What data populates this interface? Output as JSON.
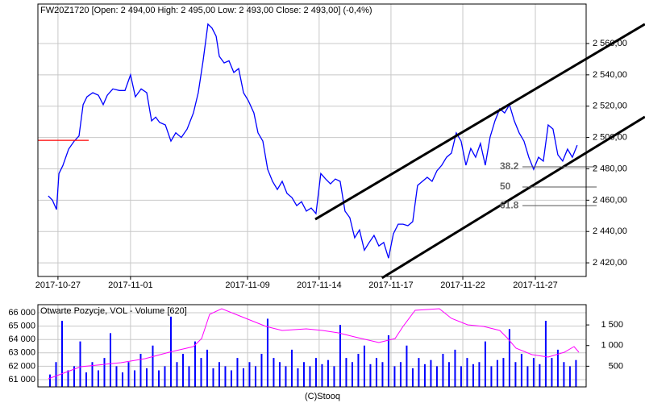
{
  "chart_data": [
    {
      "type": "line",
      "title": "FW20Z1720 [Open: 2 494,00  High: 2 495,00  Low: 2 493,00  Close: 2 493,00] (-0,4%)",
      "color": "#0000ff",
      "x": [
        0.43,
        0.6,
        0.77,
        0.87,
        1.03,
        1.27,
        1.5,
        1.7,
        1.87,
        2.03,
        2.27,
        2.5,
        2.7,
        2.87,
        3.1,
        3.37,
        3.6,
        3.83,
        4.03,
        4.27,
        4.5,
        4.7,
        4.87,
        5.03,
        5.27,
        5.5,
        5.7,
        5.93,
        6.17,
        6.43,
        6.63,
        6.83,
        7.03,
        7.2,
        7.37,
        7.5,
        7.7,
        7.9,
        8.1,
        8.3,
        8.5,
        8.7,
        8.93,
        9.1,
        9.3,
        9.5,
        9.7,
        9.9,
        10.1,
        10.3,
        10.5,
        10.7,
        10.9,
        11.1,
        11.3,
        11.5,
        11.7,
        11.9,
        12.1,
        12.3,
        12.5,
        12.7,
        12.9,
        13.1,
        13.3,
        13.5,
        13.7,
        13.9,
        14.1,
        14.3,
        14.5,
        14.7,
        14.9,
        15.1,
        15.3,
        15.5,
        15.7,
        15.9,
        16.1,
        16.3,
        16.5,
        16.7,
        16.9,
        17.1,
        17.3,
        17.5,
        17.7,
        17.9,
        18.1,
        18.3,
        18.5,
        18.7,
        18.9,
        19.1,
        19.3,
        19.5,
        19.7,
        19.9,
        20.1,
        20.3,
        20.5,
        20.7,
        20.9,
        21.1,
        21.3,
        21.5,
        21.7,
        21.9,
        22.1,
        22.3
      ],
      "values": [
        2462.7,
        2460,
        2454,
        2477,
        2482,
        2492.6,
        2497.7,
        2501,
        2521,
        2526,
        2528.6,
        2527,
        2521,
        2527,
        2531,
        2530,
        2530,
        2540,
        2526,
        2531,
        2528.6,
        2510.6,
        2513,
        2509.6,
        2508,
        2497.7,
        2503,
        2500,
        2505.4,
        2515.7,
        2528.6,
        2549,
        2572.4,
        2569.8,
        2564.6,
        2551.8,
        2547.6,
        2549,
        2541.5,
        2544,
        2528.6,
        2523.5,
        2515.7,
        2503,
        2497.7,
        2479.7,
        2472,
        2466.8,
        2472,
        2464.3,
        2461.7,
        2456.5,
        2459,
        2453,
        2455,
        2451.4,
        2477,
        2473.5,
        2470.4,
        2473.5,
        2472,
        2453,
        2448.8,
        2436,
        2441,
        2428,
        2433,
        2437.5,
        2430.8,
        2433,
        2423,
        2438.5,
        2444.7,
        2444.7,
        2443.7,
        2446.3,
        2469.4,
        2472,
        2474.6,
        2472,
        2478.7,
        2482.3,
        2487.4,
        2490,
        2503,
        2497.7,
        2482.3,
        2493,
        2487.4,
        2496.2,
        2482.3,
        2500.3,
        2510.6,
        2518.3,
        2515.7,
        2520.9,
        2510.6,
        2503,
        2497.7,
        2487.4,
        2479.7,
        2487.4,
        2484.9,
        2508,
        2505.4,
        2489,
        2485,
        2492.6,
        2487.4,
        2495.1
      ],
      "xlim": [
        0,
        22.67
      ],
      "ylim": [
        2411.3,
        2585.2
      ],
      "xticks": [
        {
          "value": 0.83,
          "label": "2017-10-27"
        },
        {
          "value": 3.83,
          "label": "2017-11-01"
        },
        {
          "value": 8.67,
          "label": "2017-11-09"
        },
        {
          "value": 11.63,
          "label": "2017-11-14"
        },
        {
          "value": 14.6,
          "label": "2017-11-17"
        },
        {
          "value": 17.57,
          "label": "2017-11-22"
        },
        {
          "value": 20.57,
          "label": "2017-11-27"
        }
      ],
      "yticks": [
        {
          "value": 2420,
          "label": "2 420,00"
        },
        {
          "value": 2440,
          "label": "2 440,00"
        },
        {
          "value": 2460,
          "label": "2 460,00"
        },
        {
          "value": 2480,
          "label": "2 480,00"
        },
        {
          "value": 2500,
          "label": "2 500,00"
        },
        {
          "value": 2520,
          "label": "2 520,00"
        },
        {
          "value": 2540,
          "label": "2 540,00"
        },
        {
          "value": 2560,
          "label": "2 560,00"
        }
      ],
      "grid": true,
      "trend_lines": [
        {
          "x": [
            11.47,
            25.1
          ],
          "y": [
            2447.8,
            2572.4
          ]
        },
        {
          "x": [
            14.23,
            25.1
          ],
          "y": [
            2410.3,
            2513.2
          ]
        }
      ],
      "fib_levels": [
        {
          "label": "38.2",
          "value": 2481.3
        },
        {
          "label": "50",
          "value": 2468.4
        },
        {
          "label": "61.8",
          "value": 2456.5
        }
      ],
      "reference_line": {
        "value": 2498.2,
        "x": [
          0,
          2.1
        ],
        "color": "#ff0000"
      }
    },
    {
      "type": "combo",
      "title": "Otwarte Pozycje, VOL - Volume [620]",
      "xlim": [
        0,
        22.67
      ],
      "ylim": [
        60458,
        66602
      ],
      "yticks": [
        {
          "value": 61000,
          "label": "61 000"
        },
        {
          "value": 62000,
          "label": "62 000"
        },
        {
          "value": 63000,
          "label": "63 000"
        },
        {
          "value": 64000,
          "label": "64 000"
        },
        {
          "value": 65000,
          "label": "65 000"
        },
        {
          "value": 66000,
          "label": "66 000"
        }
      ],
      "y2lim": [
        0,
        1990
      ],
      "y2ticks": [
        500,
        {
          "value": 1000,
          "label": "1 000"
        },
        {
          "value": 1500,
          "label": "1 500"
        }
      ],
      "grid": true,
      "series": [
        {
          "type": "bar",
          "axis": "y2",
          "color": "#0000ff",
          "x": [
            0.5,
            0.75,
            1,
            1.25,
            1.5,
            1.75,
            2,
            2.25,
            2.5,
            2.75,
            3,
            3.25,
            3.5,
            3.75,
            4,
            4.25,
            4.5,
            4.75,
            5,
            5.25,
            5.5,
            5.75,
            6,
            6.25,
            6.5,
            6.75,
            7,
            7.25,
            7.5,
            7.75,
            8,
            8.25,
            8.5,
            8.75,
            9,
            9.25,
            9.5,
            9.75,
            10,
            10.25,
            10.5,
            10.75,
            11,
            11.25,
            11.5,
            11.75,
            12,
            12.25,
            12.5,
            12.75,
            13,
            13.25,
            13.5,
            13.75,
            14,
            14.25,
            14.5,
            14.75,
            15,
            15.25,
            15.5,
            15.75,
            16,
            16.25,
            16.5,
            16.75,
            17,
            17.25,
            17.5,
            17.75,
            18,
            18.25,
            18.5,
            18.75,
            19,
            19.25,
            19.5,
            19.75,
            20,
            20.25,
            20.5,
            20.75,
            21,
            21.25,
            21.5,
            21.75,
            22,
            22.25
          ],
          "values": [
            300,
            600,
            1600,
            400,
            500,
            1100,
            350,
            600,
            400,
            700,
            1300,
            500,
            350,
            600,
            400,
            800,
            450,
            1000,
            400,
            500,
            1700,
            600,
            800,
            500,
            1100,
            700,
            900,
            450,
            600,
            500,
            400,
            700,
            450,
            600,
            500,
            800,
            1650,
            700,
            600,
            500,
            900,
            450,
            600,
            500,
            700,
            550,
            650,
            500,
            1500,
            700,
            600,
            800,
            1000,
            550,
            700,
            600,
            1250,
            500,
            600,
            1000,
            450,
            700,
            550,
            650,
            500,
            800,
            600,
            900,
            500,
            700,
            550,
            600,
            1100,
            500,
            650,
            700,
            1400,
            600,
            800,
            500,
            700,
            550,
            1600,
            700,
            900,
            600,
            500,
            650
          ]
        },
        {
          "type": "line",
          "color": "#ff00ff",
          "x": [
            0.43,
            1.77,
            3.43,
            4.43,
            5.43,
            6.43,
            6.77,
            7.1,
            7.6,
            8.43,
            9.43,
            10.1,
            11.1,
            11.77,
            12.43,
            13.1,
            14.1,
            14.77,
            15.1,
            15.6,
            16.6,
            17.1,
            17.77,
            18.43,
            19.1,
            19.43,
            19.77,
            20.43,
            21.1,
            21.77,
            22.17,
            22.37
          ],
          "values": [
            61060,
            61964,
            62265,
            62566,
            63048,
            63470,
            64072,
            65880,
            66301,
            65699,
            64976,
            64675,
            64795,
            64675,
            64494,
            64193,
            63771,
            64072,
            64976,
            66181,
            66301,
            65578,
            65096,
            64976,
            64675,
            64072,
            63349,
            62867,
            62687,
            63048,
            63470,
            63048
          ]
        }
      ]
    }
  ]
}
